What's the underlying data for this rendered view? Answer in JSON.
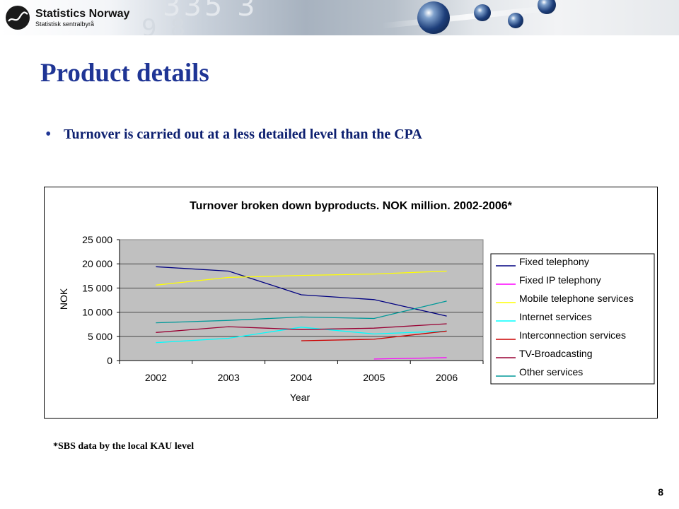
{
  "header": {
    "org_name": "Statistics Norway",
    "org_subname": "Statistisk sentralbyrå"
  },
  "slide": {
    "title": "Product details",
    "bullet": "Turnover is carried out at a less detailed level than the CPA",
    "footnote": "*SBS data by the local KAU level",
    "page_number": "8"
  },
  "colors": {
    "title": "#1f3595",
    "plot_background": "#c0c0c0"
  },
  "chart_data": {
    "type": "line",
    "title": "Turnover broken down byproducts. NOK million. 2002-2006*",
    "xlabel": "Year",
    "ylabel": "NOK",
    "x": [
      "2002",
      "2003",
      "2004",
      "2005",
      "2006"
    ],
    "ylim": [
      0,
      25000
    ],
    "yticks": [
      {
        "value": 0,
        "label": "0"
      },
      {
        "value": 5000,
        "label": "5 000"
      },
      {
        "value": 10000,
        "label": "10 000"
      },
      {
        "value": 15000,
        "label": "15 000"
      },
      {
        "value": 20000,
        "label": "20 000"
      },
      {
        "value": 25000,
        "label": "25 000"
      }
    ],
    "grid": "horizontal",
    "legend_position": "right",
    "series": [
      {
        "name": "Fixed telephony",
        "color": "#000080",
        "values": [
          19400,
          18500,
          13600,
          12600,
          9200
        ]
      },
      {
        "name": "Fixed IP telephony",
        "color": "#ff00ff",
        "values": [
          null,
          null,
          null,
          300,
          600
        ]
      },
      {
        "name": "Mobile telephone services",
        "color": "#ffff00",
        "values": [
          15600,
          17200,
          17600,
          17900,
          18500
        ]
      },
      {
        "name": "Internet services",
        "color": "#00ffff",
        "values": [
          3700,
          4600,
          6900,
          5500,
          6100
        ]
      },
      {
        "name": "Interconnection services",
        "color": "#cc0000",
        "values": [
          null,
          null,
          4100,
          4400,
          6100
        ]
      },
      {
        "name": "TV-Broadcasting",
        "color": "#990033",
        "values": [
          5800,
          7000,
          6400,
          6700,
          7600
        ]
      },
      {
        "name": "Other services",
        "color": "#009999",
        "values": [
          7800,
          8300,
          9000,
          8700,
          12300
        ]
      }
    ]
  }
}
